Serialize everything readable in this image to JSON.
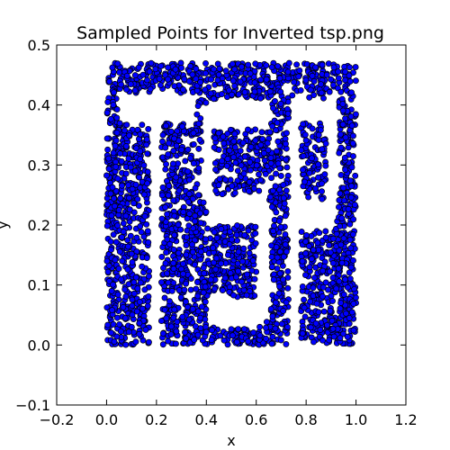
{
  "chart_data": {
    "type": "scatter",
    "title": "Sampled Points for Inverted tsp.png",
    "xlabel": "x",
    "ylabel": "y",
    "xlim": [
      -0.2,
      1.2
    ],
    "ylim": [
      -0.1,
      0.5
    ],
    "xticks": [
      "−0.2",
      "0.0",
      "0.2",
      "0.4",
      "0.6",
      "0.8",
      "1.0",
      "1.2"
    ],
    "yticks": [
      "−0.1",
      "0.0",
      "0.1",
      "0.2",
      "0.3",
      "0.4",
      "0.5"
    ],
    "grid": false,
    "marker_color": "#0000ff",
    "marker_edge_color": "#000000",
    "point_count_approx": 3000,
    "regions_description": "Points fill the rectangle x 0.0–1.0, y 0.0–0.47 except blank areas forming the letters T, S and P (inverted image).",
    "point_samples": [
      {
        "x": 0.02,
        "y": 0.46
      },
      {
        "x": 0.1,
        "y": 0.45
      },
      {
        "x": 0.2,
        "y": 0.44
      },
      {
        "x": 0.3,
        "y": 0.46
      },
      {
        "x": 0.4,
        "y": 0.44
      },
      {
        "x": 0.5,
        "y": 0.45
      },
      {
        "x": 0.6,
        "y": 0.44
      },
      {
        "x": 0.7,
        "y": 0.46
      },
      {
        "x": 0.8,
        "y": 0.45
      },
      {
        "x": 0.9,
        "y": 0.46
      },
      {
        "x": 0.98,
        "y": 0.45
      },
      {
        "x": 0.05,
        "y": 0.3
      },
      {
        "x": 0.12,
        "y": 0.2
      },
      {
        "x": 0.08,
        "y": 0.1
      },
      {
        "x": 0.15,
        "y": 0.03
      },
      {
        "x": 0.25,
        "y": 0.3
      },
      {
        "x": 0.32,
        "y": 0.18
      },
      {
        "x": 0.28,
        "y": 0.08
      },
      {
        "x": 0.45,
        "y": 0.2
      },
      {
        "x": 0.55,
        "y": 0.3
      },
      {
        "x": 0.6,
        "y": 0.32
      },
      {
        "x": 0.62,
        "y": 0.02
      },
      {
        "x": 0.7,
        "y": 0.08
      },
      {
        "x": 0.85,
        "y": 0.3
      },
      {
        "x": 0.92,
        "y": 0.1
      },
      {
        "x": 0.97,
        "y": 0.02
      },
      {
        "x": 0.8,
        "y": 0.12
      }
    ]
  }
}
